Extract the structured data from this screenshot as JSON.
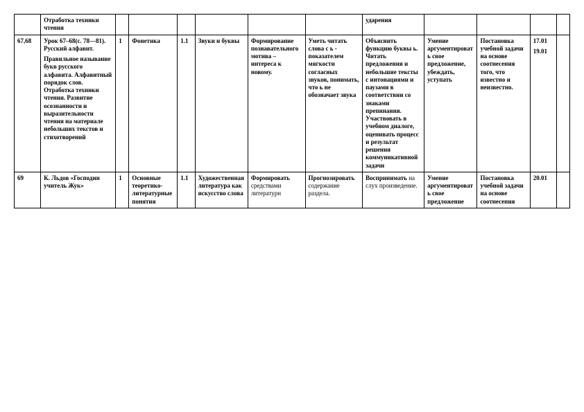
{
  "rows": [
    {
      "c1": "",
      "c2": "Отработка техники чтения",
      "c3": "",
      "c4": "",
      "c5": "",
      "c6": "",
      "c7": "",
      "c8": "",
      "c9": "ударения",
      "c10": "",
      "c11": "",
      "c12": "",
      "c13": ""
    },
    {
      "c1": "67,68",
      "c2": "Урок 67–68(с. 78—81). Русский алфавит.\n\nПравильное называние букв русского алфавита. Алфавитный порядок слов. Отработка техники чтения. Развитие осознанности и выразительности чтения на материале небольших текстов и стихотворений",
      "c3": "1",
      "c4": "Фонетика",
      "c5": "1.1",
      "c6": "Звуки и буквы",
      "c7": "Формирование познавательного мотива – интереса к новому.",
      "c8": "Уметь читать слова с ь - показателем мягкости согласных звуков, понимать, что ь не обозначает звука",
      "c9": "Объяснить функцию буквы ь. Читать предложения и небольшие тексты с интонациями и паузами в соответствии со знаками препинания. Участвовать в учебном диалоге, оценивать процесс и результат решения коммуникативной задачи",
      "c10": "Умение аргументировать свое предложение, убеждать, уступать",
      "c11": "Постановка учебной задачи на основе соотнесения того, что известно и неизвестно.",
      "c12": "17.01\n\n19.01",
      "c13": ""
    },
    {
      "c1": "69",
      "c2": "К. Льдов «Господин учитель Жук»",
      "c3": "1",
      "c4": "Основные теоретико-литературные понятия",
      "c5": "1.1",
      "c6": "Художественная литература как искусство слова",
      "c7": "Формировать средствами литературн",
      "c8": "Прогнозировать содержание раздела.",
      "c9": "Воспринимать на слух произведение.",
      "c10": "Умение аргументировать свое предложение",
      "c11": "Постановка учебной задачи на основе соотнесения",
      "c12": "20.01",
      "c13": ""
    }
  ],
  "style": {
    "font_family": "Times New Roman",
    "font_size_pt": 9,
    "border_color": "#000000",
    "background": "#ffffff",
    "row3_mixed_weight_cells": [
      "c7",
      "c8",
      "c9"
    ]
  }
}
